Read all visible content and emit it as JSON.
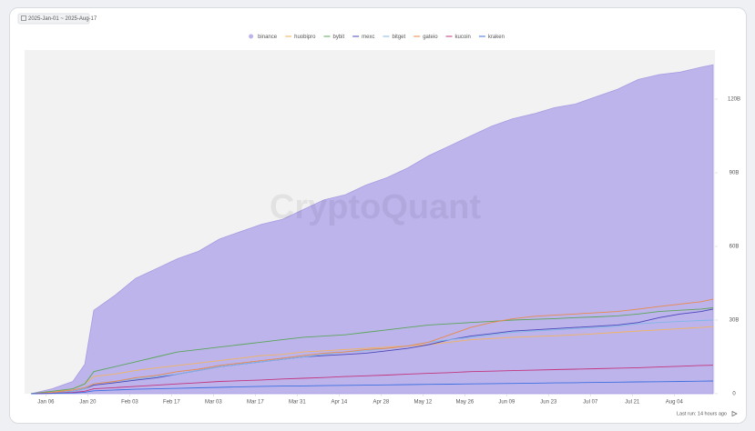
{
  "chart_data": {
    "type": "area_lines",
    "date_range": "2025-Jan-01 ~ 2025-Aug-17",
    "watermark": "CryptoQuant",
    "footer": "Last run: 14 hours ago",
    "x": [
      "2025-01-01",
      "2025-01-08",
      "2025-01-15",
      "2025-01-19",
      "2025-01-22",
      "2025-01-29",
      "2025-02-05",
      "2025-02-12",
      "2025-02-19",
      "2025-02-26",
      "2025-03-05",
      "2025-03-12",
      "2025-03-19",
      "2025-03-26",
      "2025-04-02",
      "2025-04-09",
      "2025-04-16",
      "2025-04-23",
      "2025-04-30",
      "2025-05-07",
      "2025-05-14",
      "2025-05-21",
      "2025-05-28",
      "2025-06-04",
      "2025-06-11",
      "2025-06-18",
      "2025-06-25",
      "2025-07-02",
      "2025-07-09",
      "2025-07-16",
      "2025-07-23",
      "2025-07-30",
      "2025-08-06",
      "2025-08-13",
      "2025-08-17"
    ],
    "xlim": [
      "2025-01-01",
      "2025-08-17"
    ],
    "xticks": [
      {
        "value": "2025-01-06",
        "label": "Jan 06"
      },
      {
        "value": "2025-01-20",
        "label": "Jan 20"
      },
      {
        "value": "2025-02-03",
        "label": "Feb 03"
      },
      {
        "value": "2025-02-17",
        "label": "Feb 17"
      },
      {
        "value": "2025-03-03",
        "label": "Mar 03"
      },
      {
        "value": "2025-03-17",
        "label": "Mar 17"
      },
      {
        "value": "2025-03-31",
        "label": "Mar 31"
      },
      {
        "value": "2025-04-14",
        "label": "Apr 14"
      },
      {
        "value": "2025-04-28",
        "label": "Apr 28"
      },
      {
        "value": "2025-05-12",
        "label": "May 12"
      },
      {
        "value": "2025-05-26",
        "label": "May 26"
      },
      {
        "value": "2025-06-09",
        "label": "Jun 09"
      },
      {
        "value": "2025-06-23",
        "label": "Jun 23"
      },
      {
        "value": "2025-07-07",
        "label": "Jul 07"
      },
      {
        "value": "2025-07-21",
        "label": "Jul 21"
      },
      {
        "value": "2025-08-04",
        "label": "Aug 04"
      }
    ],
    "ylim": [
      0,
      140
    ],
    "yticks": [
      0,
      {
        "value": 30,
        "label": "30B"
      },
      {
        "value": 60,
        "label": "60B"
      },
      {
        "value": 90,
        "label": "90B"
      },
      {
        "value": 120,
        "label": "120B"
      }
    ],
    "series": [
      {
        "name": "binance",
        "color": "#a99be0",
        "fill": "#bdb4ec",
        "style": "area",
        "values": [
          0,
          2,
          5,
          12,
          34,
          40,
          47,
          51,
          55,
          58,
          63,
          66,
          69,
          71,
          75,
          79,
          81,
          85,
          88,
          92,
          97,
          101,
          105,
          109,
          112,
          114,
          116.5,
          118,
          121,
          124,
          128,
          130,
          131,
          133,
          134
        ]
      },
      {
        "name": "huobipro",
        "color": "#f2b35e",
        "values": [
          0,
          0.5,
          2,
          4,
          7,
          8,
          9.5,
          10.5,
          11.5,
          12.5,
          13.5,
          14.5,
          15.5,
          16,
          17,
          17.5,
          18,
          18.5,
          19,
          19.5,
          20,
          21,
          22,
          22.5,
          23,
          23.3,
          23.6,
          24,
          24.5,
          25,
          25.5,
          26,
          26.5,
          27,
          27.3
        ]
      },
      {
        "name": "bybit",
        "color": "#5aa55a",
        "values": [
          0,
          1,
          2,
          4,
          9,
          11,
          13,
          15,
          17,
          18,
          19,
          20,
          21,
          22,
          23,
          23.5,
          24,
          25,
          26,
          27,
          28,
          28.5,
          29,
          29.5,
          30,
          30.3,
          30.6,
          31,
          31.3,
          31.7,
          32.5,
          33.5,
          34,
          34.5,
          35
        ]
      },
      {
        "name": "mexc",
        "color": "#4a46b8",
        "values": [
          0,
          0.3,
          1,
          2,
          3.5,
          4.5,
          5.5,
          6.5,
          8,
          9.5,
          11,
          12,
          13,
          14,
          15,
          15.5,
          16,
          16.5,
          17.5,
          18.5,
          20,
          22,
          23.5,
          24.5,
          25.5,
          26,
          26.5,
          27,
          27.5,
          28,
          29,
          31,
          32.5,
          33.5,
          34.5
        ]
      },
      {
        "name": "bitget",
        "color": "#7fb8e6",
        "values": [
          0,
          0.3,
          1,
          2,
          4,
          5,
          6,
          7,
          8,
          9.5,
          11,
          12,
          13,
          14,
          15,
          16,
          17,
          17.5,
          18.5,
          19.5,
          21,
          22,
          23,
          24,
          25,
          25.5,
          26,
          26.5,
          27,
          27.5,
          28.5,
          29,
          29.5,
          29.8,
          30
        ]
      },
      {
        "name": "gateio",
        "color": "#e8894a",
        "values": [
          0,
          0.5,
          1.5,
          2.5,
          4,
          5,
          6.5,
          7.5,
          9,
          10,
          11.5,
          12.5,
          13.5,
          14.5,
          15.5,
          16.5,
          17,
          18,
          18.5,
          19.5,
          21,
          24,
          27,
          29,
          30.5,
          31.5,
          32,
          32.5,
          33,
          33.5,
          34.5,
          35.5,
          36.5,
          37.5,
          38.5
        ]
      },
      {
        "name": "kucoin",
        "color": "#c2357e",
        "values": [
          0,
          0.2,
          0.5,
          1,
          2,
          2.5,
          3,
          3.5,
          4,
          4.5,
          5,
          5.3,
          5.6,
          6,
          6.3,
          6.6,
          7,
          7.3,
          7.6,
          8,
          8.3,
          8.6,
          9,
          9.2,
          9.4,
          9.6,
          9.8,
          10,
          10.2,
          10.4,
          10.6,
          10.9,
          11.2,
          11.5,
          11.6
        ]
      },
      {
        "name": "kraken",
        "color": "#3d6fe0",
        "values": [
          0,
          0.1,
          0.3,
          0.6,
          1.2,
          1.5,
          1.8,
          2,
          2.2,
          2.4,
          2.6,
          2.8,
          3,
          3.1,
          3.2,
          3.3,
          3.4,
          3.5,
          3.6,
          3.7,
          3.8,
          3.9,
          4,
          4.1,
          4.2,
          4.3,
          4.4,
          4.5,
          4.6,
          4.7,
          4.8,
          4.9,
          5,
          5.1,
          5.2
        ]
      }
    ]
  }
}
